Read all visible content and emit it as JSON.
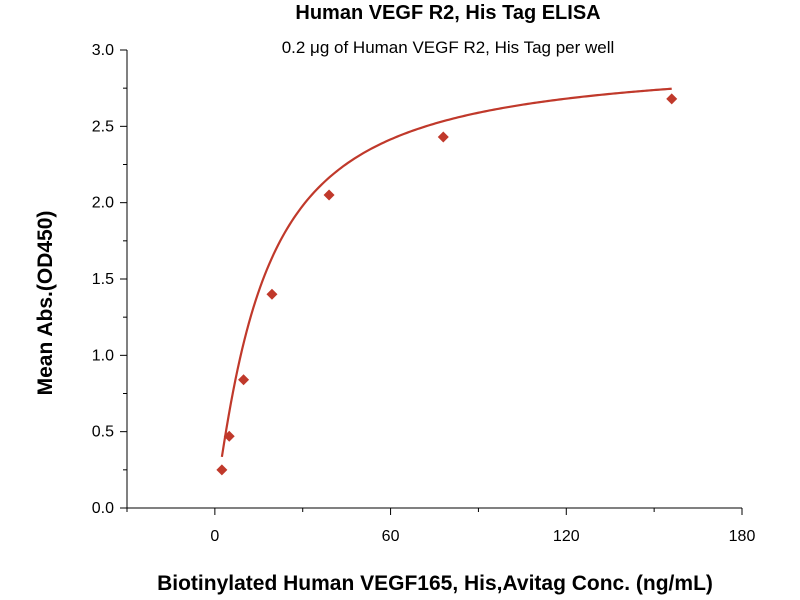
{
  "chart_data": {
    "type": "scatter",
    "title": "Human VEGF R2, His Tag ELISA",
    "subtitle": "0.2 μg of Human VEGF R2, His Tag per well",
    "xlabel": "Biotinylated Human VEGF165, His,Avitag Conc. (ng/mL)",
    "ylabel": "Mean Abs.(OD450)",
    "xlim": [
      -30,
      180
    ],
    "ylim": [
      0,
      3.0
    ],
    "x_ticks": [
      0,
      60,
      120,
      180
    ],
    "x_tick_labels": [
      "0",
      "60",
      "120",
      "180"
    ],
    "y_ticks": [
      0,
      0.5,
      1.0,
      1.5,
      2.0,
      2.5,
      3.0
    ],
    "y_tick_labels": [
      "0.0",
      "0.5",
      "1.0",
      "1.5",
      "2.0",
      "2.5",
      "3.0"
    ],
    "grid": false,
    "legend": "none",
    "color": "#c0392b",
    "series": [
      {
        "x": [
          2.4,
          4.9,
          9.8,
          19.5,
          39,
          78,
          156
        ],
        "y": [
          0.25,
          0.47,
          0.84,
          1.4,
          2.05,
          2.43,
          2.68
        ],
        "marker": "diamond",
        "fit": "four-parameter logistic curve"
      }
    ]
  }
}
